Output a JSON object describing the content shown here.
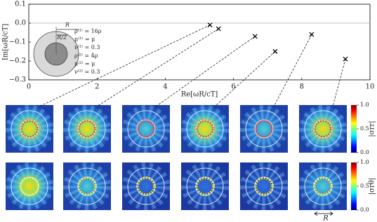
{
  "chart_data": {
    "type": "scatter",
    "xlabel": "Re[ωR/cT]",
    "ylabel": "Im[ωR/cT]",
    "x": [
      5.31,
      5.56,
      6.63,
      7.22,
      8.29,
      9.28
    ],
    "values": [
      -0.01,
      -0.03,
      -0.07,
      -0.15,
      -0.06,
      -0.19
    ],
    "color": "#000000",
    "xlim": [
      0,
      10
    ],
    "ylim": [
      -0.3,
      0.1
    ],
    "xticks": [
      0,
      2,
      4,
      6,
      8,
      10
    ],
    "yticks": [
      {
        "value": 0.1,
        "label": "0.1"
      },
      {
        "value": 0,
        "label": "0.0"
      },
      {
        "value": -0.1,
        "label": "−0.1"
      },
      {
        "value": -0.2,
        "label": "−0.2"
      },
      {
        "value": -0.3,
        "label": "−0.3"
      }
    ],
    "zero_line": true
  },
  "inset": {
    "radius": "R",
    "inner_radius": "R/2",
    "params": [
      "ρ⁽¹⁾ = 16ρ",
      "μ⁽¹⁾ = μ",
      "ν⁽¹⁾ = 0.3",
      "ρ⁽²⁾ = 4ρ",
      "μ⁽²⁾ = μ",
      "ν⁽²⁾ = 0.3"
    ]
  },
  "colorbars": [
    {
      "label": "|σrr|",
      "lim": [
        0,
        1
      ],
      "ticks": [
        {
          "value": 0,
          "label": "0.0"
        },
        {
          "value": 0.5,
          "label": "0.5"
        },
        {
          "value": 1,
          "label": "1.0"
        }
      ]
    },
    {
      "label": "|σrθ|",
      "lim": [
        0,
        1
      ],
      "ticks": [
        {
          "value": 0,
          "label": "0.0"
        },
        {
          "value": 0.5,
          "label": "0.5"
        },
        {
          "value": 1,
          "label": "1.0"
        }
      ]
    }
  ],
  "scale_bar": "R"
}
